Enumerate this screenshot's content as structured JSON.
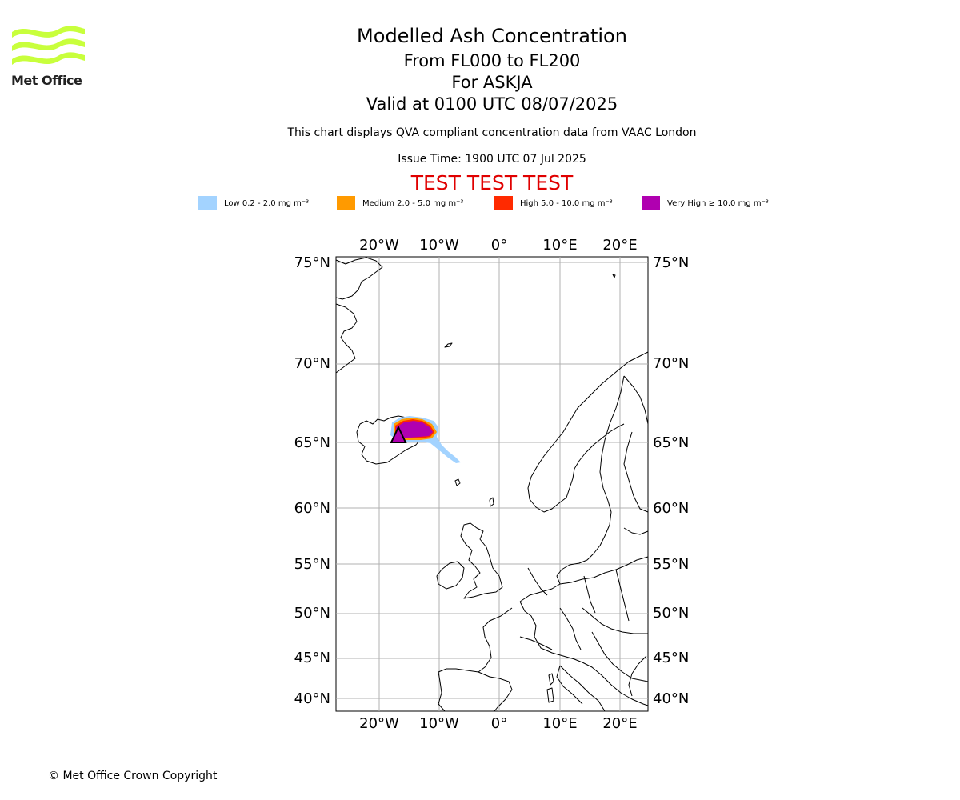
{
  "logo": {
    "text": "Met Office",
    "color": "#c8ff3c"
  },
  "header": {
    "title": "Modelled Ash Concentration",
    "flight_levels": "From FL000 to FL200",
    "volcano": "For ASKJA",
    "valid_time": "Valid at 0100 UTC 08/07/2025",
    "compliance": "This chart displays QVA compliant concentration data from VAAC London",
    "issue_time": "Issue Time: 1900 UTC 07 Jul 2025",
    "test_banner": "TEST TEST TEST"
  },
  "legend": [
    {
      "label": "Low 0.2 - 2.0 mg m⁻³",
      "color": "#a3d3ff"
    },
    {
      "label": "Medium 2.0 - 5.0 mg m⁻³",
      "color": "#ff9a00"
    },
    {
      "label": "High 5.0 - 10.0 mg m⁻³",
      "color": "#ff2a00"
    },
    {
      "label": "Very High  ≥  10.0 mg m⁻³",
      "color": "#b000b0"
    }
  ],
  "map": {
    "lon_labels": [
      "20°W",
      "10°W",
      "0°",
      "10°E",
      "20°E"
    ],
    "lat_labels": [
      "75°N",
      "70°N",
      "65°N",
      "60°N",
      "55°N",
      "50°N",
      "45°N",
      "40°N"
    ],
    "grid": true,
    "volcano_marker": "triangle"
  },
  "footer": {
    "copyright": "© Met Office Crown Copyright"
  }
}
